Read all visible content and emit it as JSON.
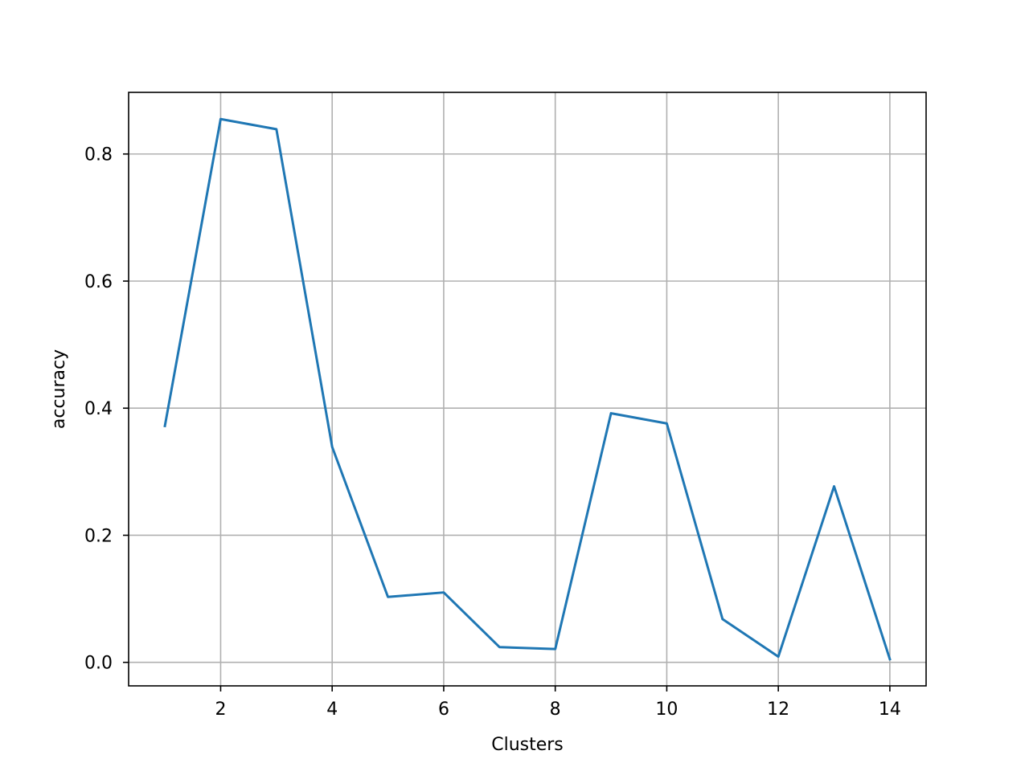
{
  "chart_data": {
    "type": "line",
    "title": "",
    "xlabel": "Clusters",
    "ylabel": "accuracy",
    "x": [
      1,
      2,
      3,
      4,
      5,
      6,
      7,
      8,
      9,
      10,
      11,
      12,
      13,
      14
    ],
    "series": [
      {
        "values": [
          0.372,
          0.855,
          0.839,
          0.339,
          0.103,
          0.11,
          0.024,
          0.021,
          0.392,
          0.376,
          0.068,
          0.009,
          0.277,
          0.005
        ],
        "color": "#1f77b4"
      }
    ],
    "xlim": [
      0.35,
      14.65
    ],
    "ylim": [
      -0.037,
      0.897
    ],
    "xticks": [
      2,
      4,
      6,
      8,
      10,
      12,
      14
    ],
    "xtick_labels": [
      "2",
      "4",
      "6",
      "8",
      "10",
      "12",
      "14"
    ],
    "yticks": [
      0.0,
      0.2,
      0.4,
      0.6,
      0.8
    ],
    "ytick_labels": [
      "0.0",
      "0.2",
      "0.4",
      "0.6",
      "0.8"
    ],
    "grid": true,
    "grid_color": "#b0b0b0",
    "axes_color": "#000000",
    "legend": false
  }
}
